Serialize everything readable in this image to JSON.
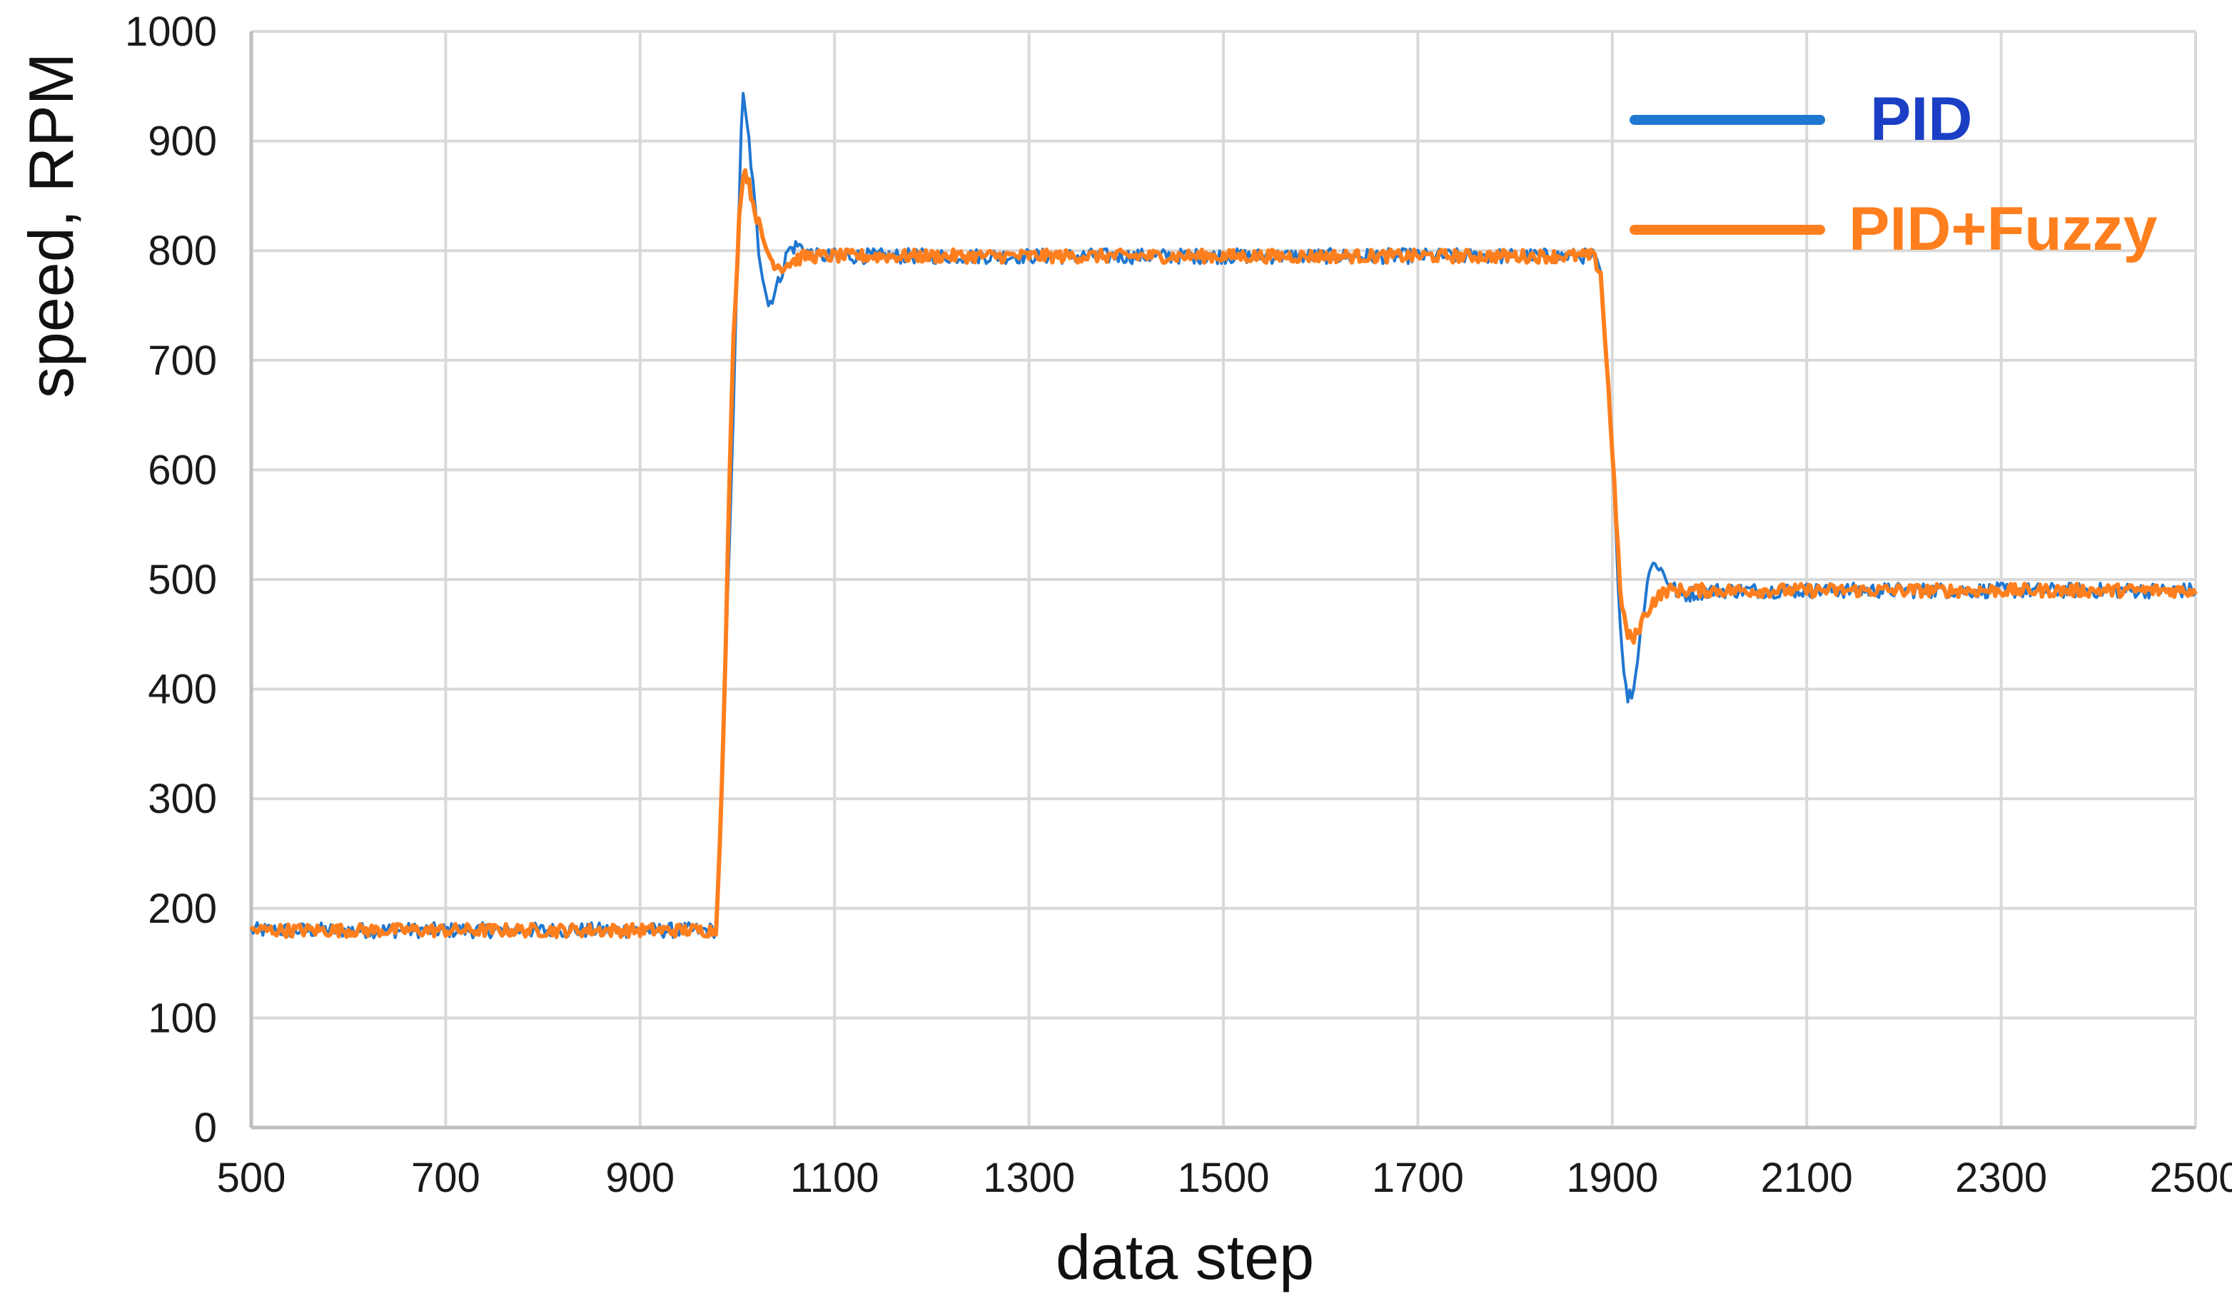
{
  "chart_data": {
    "type": "line",
    "title": "",
    "xlabel": "data step",
    "ylabel": "speed, RPM",
    "xlim": [
      500,
      2500
    ],
    "ylim": [
      0,
      1000
    ],
    "x_ticks": [
      "500",
      "700",
      "900",
      "1100",
      "1300",
      "1500",
      "1700",
      "1900",
      "2100",
      "2300",
      "2500"
    ],
    "y_ticks": [
      "0",
      "100",
      "200",
      "300",
      "400",
      "500",
      "600",
      "700",
      "800",
      "900",
      "1000"
    ],
    "grid": true,
    "legend_position": "top-right",
    "series": [
      {
        "name": "PID",
        "color": "#1f77d0",
        "label_color": "#1a3fc4",
        "x": [
          500,
          700,
          900,
          978,
          985,
          998,
          1005,
          1012,
          1022,
          1032,
          1042,
          1052,
          1062,
          1080,
          1200,
          1400,
          1600,
          1800,
          1880,
          1888,
          1900,
          1908,
          1915,
          1922,
          1930,
          1938,
          1946,
          1956,
          1970,
          2000,
          2200,
          2400,
          2500
        ],
        "y": [
          180,
          180,
          180,
          180,
          330,
          720,
          945,
          900,
          800,
          750,
          770,
          800,
          805,
          795,
          795,
          795,
          795,
          795,
          795,
          780,
          620,
          460,
          390,
          400,
          460,
          510,
          515,
          500,
          485,
          490,
          490,
          490,
          490
        ]
      },
      {
        "name": "PID+Fuzzy",
        "color": "#ff7f1e",
        "label_color": "#ff7f1e",
        "x": [
          500,
          700,
          900,
          978,
          985,
          995,
          1003,
          1008,
          1016,
          1026,
          1036,
          1046,
          1056,
          1070,
          1200,
          1400,
          1600,
          1800,
          1880,
          1888,
          1900,
          1908,
          1915,
          1922,
          1932,
          1942,
          1955,
          1970,
          2000,
          2200,
          2400,
          2500
        ],
        "y": [
          180,
          180,
          180,
          180,
          330,
          700,
          850,
          875,
          845,
          810,
          790,
          785,
          790,
          795,
          795,
          795,
          795,
          795,
          795,
          780,
          620,
          490,
          450,
          445,
          465,
          480,
          490,
          490,
          490,
          490,
          490,
          490
        ]
      }
    ]
  }
}
